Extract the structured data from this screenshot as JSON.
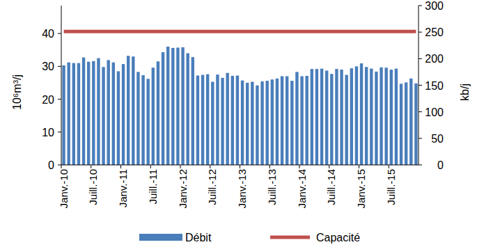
{
  "chart_data": {
    "type": "bar",
    "categories": [
      "Janv.-10",
      null,
      null,
      null,
      null,
      null,
      "Juill.-10",
      null,
      null,
      null,
      null,
      null,
      "Janv.-11",
      null,
      null,
      null,
      null,
      null,
      "Juill.-11",
      null,
      null,
      null,
      null,
      null,
      "Janv.-12",
      null,
      null,
      null,
      null,
      null,
      "Juill.-12",
      null,
      null,
      null,
      null,
      null,
      "Janv.-13",
      null,
      null,
      null,
      null,
      null,
      "Juill.-13",
      null,
      null,
      null,
      null,
      null,
      "Janv.-14",
      null,
      null,
      null,
      null,
      null,
      "Juill.-14",
      null,
      null,
      null,
      null,
      null,
      "Janv.-15",
      null,
      null,
      null,
      null,
      null,
      "Juill.-15",
      null,
      null,
      null,
      null,
      null
    ],
    "series": [
      {
        "name": "Débit",
        "type": "bar",
        "color": "#4a7ebb",
        "values": [
          30.3,
          31.2,
          31.0,
          31.0,
          32.7,
          31.4,
          31.6,
          32.5,
          29.8,
          31.9,
          31.2,
          28.5,
          30.7,
          33.2,
          33.0,
          28.3,
          27.3,
          26.2,
          29.6,
          31.5,
          34.3,
          36.0,
          35.6,
          35.7,
          35.8,
          34.0,
          32.8,
          27.2,
          27.4,
          27.6,
          25.3,
          27.5,
          26.5,
          28.0,
          27.1,
          27.2,
          25.7,
          25.0,
          25.3,
          24.2,
          25.4,
          25.6,
          26.0,
          26.3,
          27.0,
          27.0,
          25.6,
          28.3,
          27.0,
          27.1,
          29.2,
          29.2,
          29.3,
          28.7,
          27.7,
          29.2,
          29.0,
          27.4,
          29.4,
          30.0,
          30.9,
          29.8,
          29.3,
          28.4,
          29.7,
          29.6,
          29.0,
          29.3,
          24.7,
          25.1,
          26.3,
          24.8
        ]
      },
      {
        "name": "Capacité",
        "type": "line",
        "color": "#c0504d",
        "values": [
          40.6,
          40.6,
          40.6,
          40.6,
          40.6,
          40.6,
          40.6,
          40.6,
          40.6,
          40.6,
          40.6,
          40.6,
          40.6,
          40.6,
          40.6,
          40.6,
          40.6,
          40.6,
          40.6,
          40.6,
          40.6,
          40.6,
          40.6,
          40.6,
          40.6,
          40.6,
          40.6,
          40.6,
          40.6,
          40.6,
          40.6,
          40.6,
          40.6,
          40.6,
          40.6,
          40.6,
          40.6,
          40.6,
          40.6,
          40.6,
          40.6,
          40.6,
          40.6,
          40.6,
          40.6,
          40.6,
          40.6,
          40.6,
          40.6,
          40.6,
          40.6,
          40.6,
          40.6,
          40.6,
          40.6,
          40.6,
          40.6,
          40.6,
          40.6,
          40.6,
          40.6,
          40.6,
          40.6,
          40.6,
          40.6,
          40.6,
          40.6,
          40.6,
          40.6,
          40.6,
          40.6,
          40.6
        ]
      }
    ],
    "y_label": "10⁶m³/j",
    "y2_label": "kb/j",
    "ylim": [
      0,
      48.5
    ],
    "yticks": [
      0,
      10,
      20,
      30,
      40
    ],
    "y2lim": [
      0,
      300
    ],
    "y2ticks": [
      0,
      50,
      100,
      150,
      200,
      250,
      300
    ],
    "grid": false,
    "legend": "bottom"
  }
}
